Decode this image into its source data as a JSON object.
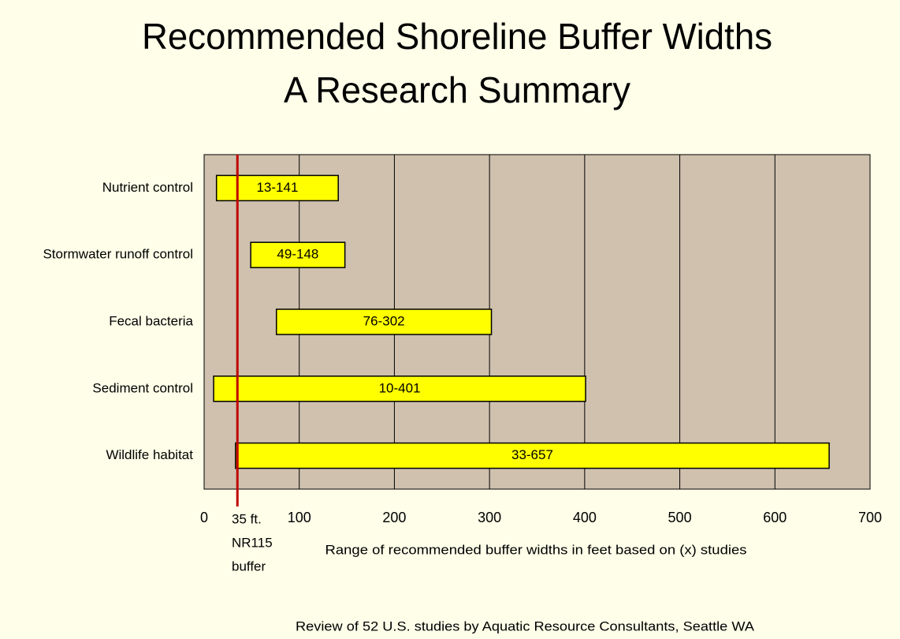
{
  "chart_data": {
    "type": "range_bar",
    "title": [
      "Recommended Shoreline Buffer Widths",
      "A Research Summary"
    ],
    "categories": [
      "Nutrient control",
      "Stormwater runoff control",
      "Fecal bacteria",
      "Sediment control",
      "Wildlife habitat"
    ],
    "low": [
      13,
      49,
      76,
      10,
      33
    ],
    "high": [
      141,
      148,
      302,
      401,
      657
    ],
    "value_labels": [
      "13-141",
      "49-148",
      "76-302",
      "10-401",
      "33-657"
    ],
    "color": "#ffff00",
    "xlim": [
      0,
      700
    ],
    "xticks": [
      0,
      100,
      200,
      300,
      400,
      500,
      600,
      700
    ],
    "grid": true,
    "xlabel": "Range of recommended buffer widths in feet based on (x) studies",
    "reference_line": {
      "value": 35,
      "label": [
        "35 ft.",
        "NR115",
        "buffer"
      ],
      "color": "#c00000"
    },
    "footnote": "Review of 52 U.S. studies by Aquatic Resource Consultants, Seattle WA"
  }
}
